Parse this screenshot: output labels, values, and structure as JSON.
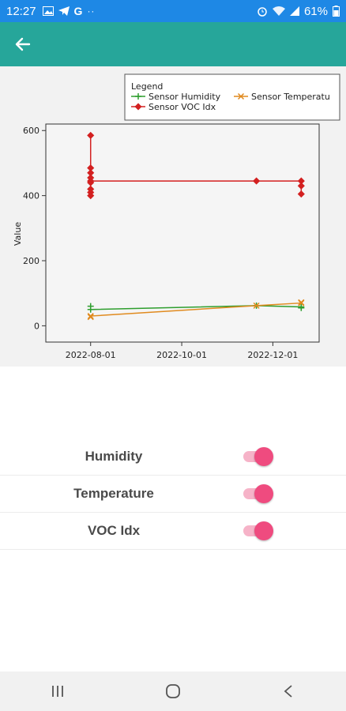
{
  "status": {
    "time": "12:27",
    "left_icons": [
      "image-icon",
      "telegram-icon",
      "google-icon",
      "more-dots-icon"
    ],
    "battery_percent": "61%"
  },
  "appbar": {
    "back_icon": "arrow-left-icon"
  },
  "chart_data": {
    "type": "line",
    "legend": {
      "title": "Legend",
      "placement": "top-right",
      "entries": [
        "Sensor Humidity",
        "Sensor Temperatu",
        "Sensor VOC Idx"
      ]
    },
    "ylabel": "Value",
    "xlabel": "",
    "ylim": [
      -50,
      620
    ],
    "yticks": [
      0,
      200,
      400,
      600
    ],
    "xlim": [
      "2022-07-02",
      "2023-01-01"
    ],
    "xticks": [
      "2022-08-01",
      "2022-10-01",
      "2022-12-01"
    ],
    "series": [
      {
        "name": "Sensor Humidity",
        "color": "#2e9e2e",
        "marker": "plus",
        "points": [
          [
            "2022-08-01",
            60
          ],
          [
            "2022-08-01",
            50
          ],
          [
            "2022-11-20",
            62
          ],
          [
            "2022-12-20",
            58
          ],
          [
            "2022-12-20",
            55
          ]
        ]
      },
      {
        "name": "Sensor Temperatu",
        "color": "#e08a1e",
        "marker": "x",
        "points": [
          [
            "2022-08-01",
            27
          ],
          [
            "2022-08-01",
            30
          ],
          [
            "2022-11-20",
            62
          ],
          [
            "2022-12-20",
            70
          ],
          [
            "2022-12-20",
            72
          ]
        ]
      },
      {
        "name": "Sensor VOC Idx",
        "color": "#d32020",
        "marker": "diamond",
        "points": [
          [
            "2022-08-01",
            585
          ],
          [
            "2022-08-01",
            485
          ],
          [
            "2022-08-01",
            470
          ],
          [
            "2022-08-01",
            455
          ],
          [
            "2022-08-01",
            440
          ],
          [
            "2022-08-01",
            420
          ],
          [
            "2022-08-01",
            410
          ],
          [
            "2022-08-01",
            400
          ],
          [
            "2022-08-01",
            445
          ],
          [
            "2022-11-20",
            445
          ],
          [
            "2022-12-20",
            445
          ],
          [
            "2022-12-20",
            430
          ],
          [
            "2022-12-20",
            405
          ]
        ]
      }
    ]
  },
  "settings": {
    "items": [
      {
        "label": "Humidity",
        "enabled": true
      },
      {
        "label": "Temperature",
        "enabled": true
      },
      {
        "label": "VOC Idx",
        "enabled": true
      }
    ]
  },
  "navbar": {
    "icons": [
      "recent-apps-icon",
      "home-icon",
      "back-icon"
    ]
  }
}
